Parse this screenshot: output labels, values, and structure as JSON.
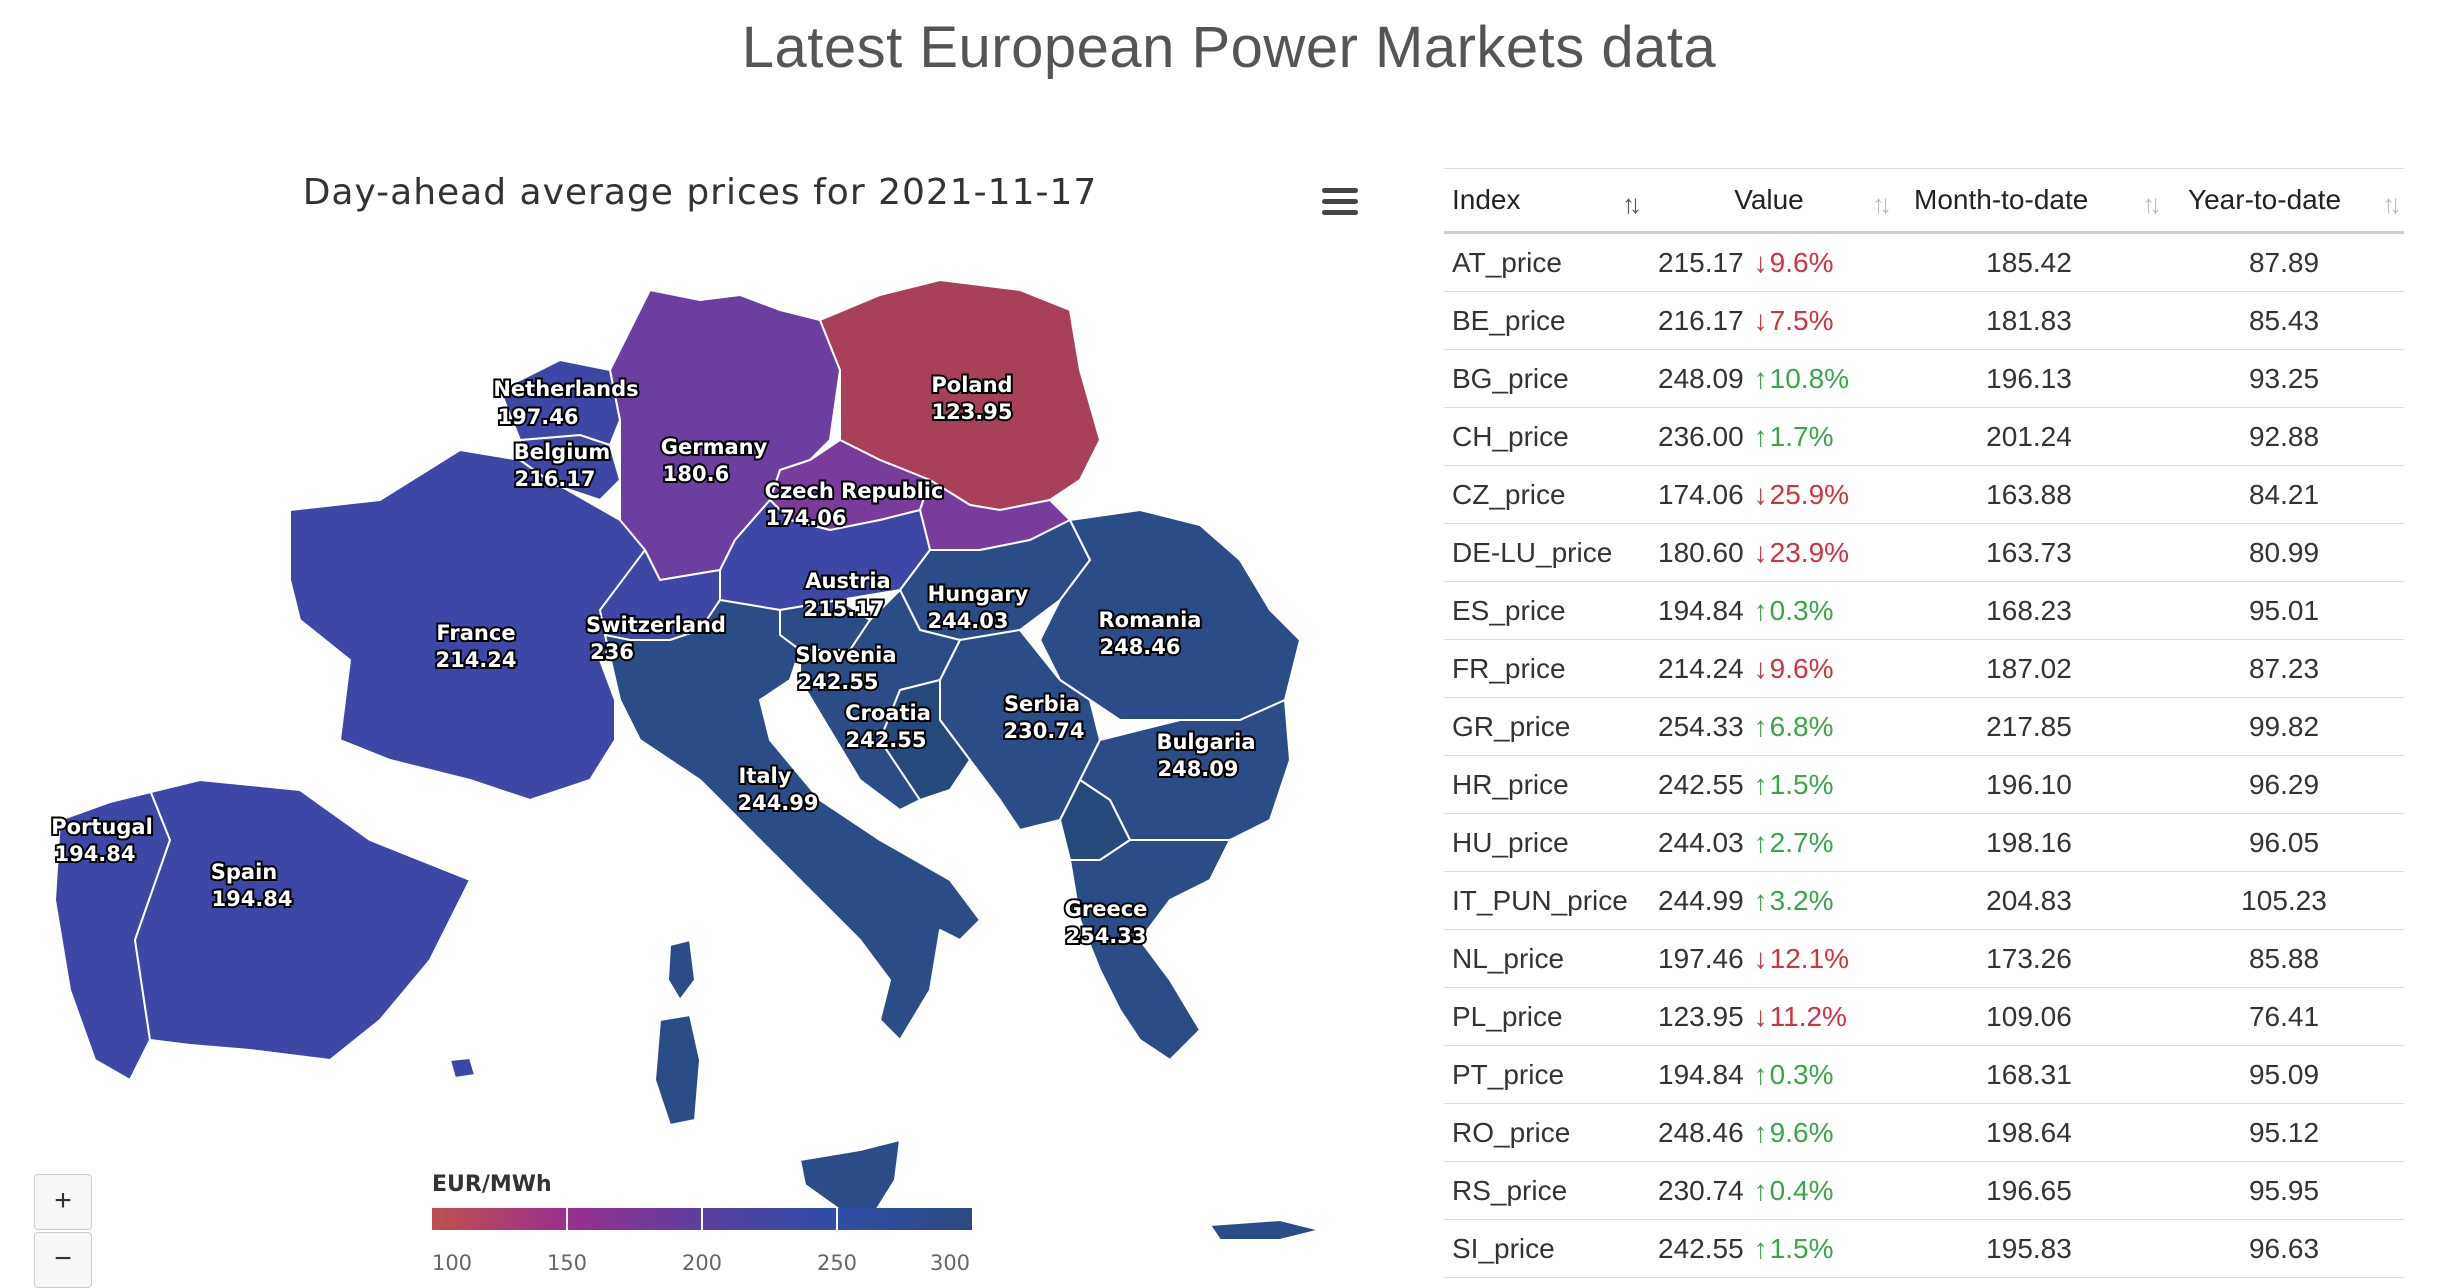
{
  "page": {
    "title": "Latest European Power Markets data"
  },
  "map": {
    "title": "Day-ahead average prices for 2021-11-17",
    "menu_icon": "hamburger-menu-icon",
    "zoom_in_label": "+",
    "zoom_out_label": "−",
    "legend": {
      "title": "EUR/MWh",
      "ticks": [
        "100",
        "150",
        "200",
        "250",
        "300"
      ],
      "colors": [
        "#c0504d",
        "#9b2f8e",
        "#5b3fa0",
        "#2e4ea8",
        "#2c4a80"
      ]
    },
    "countries": {
      "netherlands": {
        "name": "Netherlands",
        "value": "197.46"
      },
      "belgium": {
        "name": "Belgium",
        "value": "216.17"
      },
      "germany": {
        "name": "Germany",
        "value": "180.6"
      },
      "poland": {
        "name": "Poland",
        "value": "123.95"
      },
      "czech": {
        "name": "Czech Republic",
        "value": "174.06"
      },
      "austria": {
        "name": "Austria",
        "value": "215.17"
      },
      "hungary": {
        "name": "Hungary",
        "value": "244.03"
      },
      "romania": {
        "name": "Romania",
        "value": "248.46"
      },
      "france": {
        "name": "France",
        "value": "214.24"
      },
      "switzerland": {
        "name": "Switzerland",
        "value": "236"
      },
      "slovenia": {
        "name": "Slovenia",
        "value": "242.55"
      },
      "croatia": {
        "name": "Croatia",
        "value": "242.55"
      },
      "serbia": {
        "name": "Serbia",
        "value": "230.74"
      },
      "bulgaria": {
        "name": "Bulgaria",
        "value": "248.09"
      },
      "italy": {
        "name": "Italy",
        "value": "244.99"
      },
      "portugal": {
        "name": "Portugal",
        "value": "194.84"
      },
      "spain": {
        "name": "Spain",
        "value": "194.84"
      },
      "greece": {
        "name": "Greece",
        "value": "254.33"
      }
    },
    "colors": {
      "poland": "#a8405a",
      "germany": "#6b3fa0",
      "czech": "#7a3c9c",
      "blue_mid": "#3f47a6",
      "blue_dark": "#2b4d87",
      "blue_darker": "#244a7c"
    }
  },
  "table": {
    "headers": [
      "Index",
      "Value",
      "Month-to-date",
      "Year-to-date"
    ],
    "sort_icon": "sort-arrows-icon",
    "up_color": "#3aa64a",
    "down_color": "#d0333f",
    "rows": [
      {
        "index": "AT_price",
        "value": "215.17",
        "dir": "down",
        "change": "9.6%",
        "mtd": "185.42",
        "ytd": "87.89"
      },
      {
        "index": "BE_price",
        "value": "216.17",
        "dir": "down",
        "change": "7.5%",
        "mtd": "181.83",
        "ytd": "85.43"
      },
      {
        "index": "BG_price",
        "value": "248.09",
        "dir": "up",
        "change": "10.8%",
        "mtd": "196.13",
        "ytd": "93.25"
      },
      {
        "index": "CH_price",
        "value": "236.00",
        "dir": "up",
        "change": "1.7%",
        "mtd": "201.24",
        "ytd": "92.88"
      },
      {
        "index": "CZ_price",
        "value": "174.06",
        "dir": "down",
        "change": "25.9%",
        "mtd": "163.88",
        "ytd": "84.21"
      },
      {
        "index": "DE-LU_price",
        "value": "180.60",
        "dir": "down",
        "change": "23.9%",
        "mtd": "163.73",
        "ytd": "80.99"
      },
      {
        "index": "ES_price",
        "value": "194.84",
        "dir": "up",
        "change": "0.3%",
        "mtd": "168.23",
        "ytd": "95.01"
      },
      {
        "index": "FR_price",
        "value": "214.24",
        "dir": "down",
        "change": "9.6%",
        "mtd": "187.02",
        "ytd": "87.23"
      },
      {
        "index": "GR_price",
        "value": "254.33",
        "dir": "up",
        "change": "6.8%",
        "mtd": "217.85",
        "ytd": "99.82"
      },
      {
        "index": "HR_price",
        "value": "242.55",
        "dir": "up",
        "change": "1.5%",
        "mtd": "196.10",
        "ytd": "96.29"
      },
      {
        "index": "HU_price",
        "value": "244.03",
        "dir": "up",
        "change": "2.7%",
        "mtd": "198.16",
        "ytd": "96.05"
      },
      {
        "index": "IT_PUN_price",
        "value": "244.99",
        "dir": "up",
        "change": "3.2%",
        "mtd": "204.83",
        "ytd": "105.23"
      },
      {
        "index": "NL_price",
        "value": "197.46",
        "dir": "down",
        "change": "12.1%",
        "mtd": "173.26",
        "ytd": "85.88"
      },
      {
        "index": "PL_price",
        "value": "123.95",
        "dir": "down",
        "change": "11.2%",
        "mtd": "109.06",
        "ytd": "76.41"
      },
      {
        "index": "PT_price",
        "value": "194.84",
        "dir": "up",
        "change": "0.3%",
        "mtd": "168.31",
        "ytd": "95.09"
      },
      {
        "index": "RO_price",
        "value": "248.46",
        "dir": "up",
        "change": "9.6%",
        "mtd": "198.64",
        "ytd": "95.12"
      },
      {
        "index": "RS_price",
        "value": "230.74",
        "dir": "up",
        "change": "0.4%",
        "mtd": "196.65",
        "ytd": "95.95"
      },
      {
        "index": "SI_price",
        "value": "242.55",
        "dir": "up",
        "change": "1.5%",
        "mtd": "195.83",
        "ytd": "96.63"
      }
    ]
  }
}
